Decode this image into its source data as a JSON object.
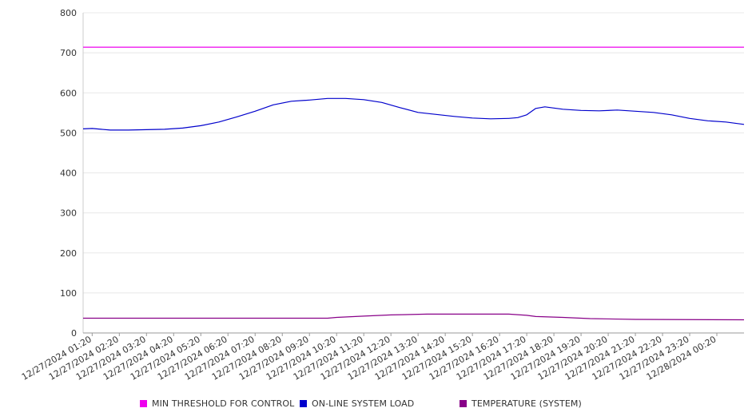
{
  "chart_data": {
    "type": "line",
    "title": "",
    "xlabel": "",
    "ylabel": "",
    "ylim": [
      0,
      800
    ],
    "y_ticks": [
      0,
      100,
      200,
      300,
      400,
      500,
      600,
      700,
      800
    ],
    "x_range": [
      "12/27/2024 01:00",
      "12/28/2024 01:20"
    ],
    "x_tick_labels": [
      "12/27/2024 01:20",
      "12/27/2024 02:20",
      "12/27/2024 03:20",
      "12/27/2024 04:20",
      "12/27/2024 05:20",
      "12/27/2024 06:20",
      "12/27/2024 07:20",
      "12/27/2024 08:20",
      "12/27/2024 09:20",
      "12/27/2024 10:20",
      "12/27/2024 11:20",
      "12/27/2024 12:20",
      "12/27/2024 13:20",
      "12/27/2024 14:20",
      "12/27/2024 15:20",
      "12/27/2024 16:20",
      "12/27/2024 17:20",
      "12/27/2024 18:20",
      "12/27/2024 19:20",
      "12/27/2024 20:20",
      "12/27/2024 21:20",
      "12/27/2024 22:20",
      "12/27/2024 23:20",
      "12/28/2024 00:20"
    ],
    "grid": true,
    "legend_position": "bottom",
    "series": [
      {
        "name": "MIN THRESHOLD FOR CONTROL",
        "color": "#ee00ee",
        "x": [
          "12/27/2024 01:00",
          "12/28/2024 01:20"
        ],
        "values": [
          714,
          714
        ]
      },
      {
        "name": "ON-LINE SYSTEM LOAD",
        "color": "#0000cc",
        "x": [
          "12/27/2024 01:00",
          "12/27/2024 01:20",
          "12/27/2024 02:00",
          "12/27/2024 02:40",
          "12/27/2024 03:20",
          "12/27/2024 04:00",
          "12/27/2024 04:40",
          "12/27/2024 05:20",
          "12/27/2024 06:00",
          "12/27/2024 06:40",
          "12/27/2024 07:20",
          "12/27/2024 08:00",
          "12/27/2024 08:40",
          "12/27/2024 09:20",
          "12/27/2024 10:00",
          "12/27/2024 10:40",
          "12/27/2024 11:20",
          "12/27/2024 12:00",
          "12/27/2024 12:40",
          "12/27/2024 13:20",
          "12/27/2024 14:00",
          "12/27/2024 14:40",
          "12/27/2024 15:20",
          "12/27/2024 16:00",
          "12/27/2024 16:40",
          "12/27/2024 17:00",
          "12/27/2024 17:20",
          "12/27/2024 17:40",
          "12/27/2024 18:00",
          "12/27/2024 18:40",
          "12/27/2024 19:20",
          "12/27/2024 20:00",
          "12/27/2024 20:40",
          "12/27/2024 21:20",
          "12/27/2024 22:00",
          "12/27/2024 22:40",
          "12/27/2024 23:20",
          "12/28/2024 00:00",
          "12/28/2024 00:40",
          "12/28/2024 01:20"
        ],
        "values": [
          510,
          511,
          507,
          507,
          508,
          509,
          512,
          518,
          527,
          540,
          554,
          570,
          579,
          582,
          586,
          586,
          583,
          576,
          563,
          551,
          546,
          541,
          537,
          535,
          536,
          538,
          545,
          561,
          565,
          559,
          556,
          555,
          557,
          554,
          551,
          545,
          536,
          530,
          527,
          521
        ]
      },
      {
        "name": "TEMPERATURE (SYSTEM)",
        "color": "#880088",
        "x": [
          "12/27/2024 01:00",
          "12/27/2024 10:00",
          "12/27/2024 10:20",
          "12/27/2024 11:20",
          "12/27/2024 12:20",
          "12/27/2024 13:40",
          "12/27/2024 16:40",
          "12/27/2024 17:20",
          "12/27/2024 17:40",
          "12/27/2024 18:40",
          "12/27/2024 19:40",
          "12/27/2024 21:20",
          "12/28/2024 01:20"
        ],
        "values": [
          37,
          37,
          39,
          42,
          45,
          47,
          47,
          44,
          41,
          39,
          36,
          34,
          33
        ]
      }
    ]
  }
}
